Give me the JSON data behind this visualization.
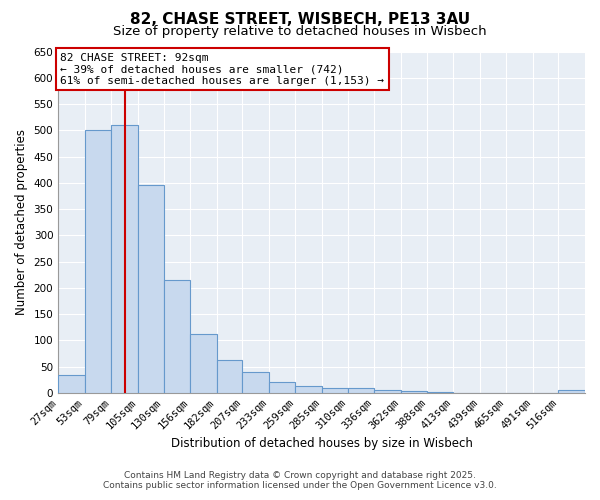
{
  "title": "82, CHASE STREET, WISBECH, PE13 3AU",
  "subtitle": "Size of property relative to detached houses in Wisbech",
  "xlabel": "Distribution of detached houses by size in Wisbech",
  "ylabel": "Number of detached properties",
  "bar_edges": [
    27,
    53,
    79,
    105,
    130,
    156,
    182,
    207,
    233,
    259,
    285,
    310,
    336,
    362,
    388,
    413,
    439,
    465,
    491,
    516,
    542
  ],
  "bar_heights": [
    35,
    500,
    510,
    395,
    215,
    112,
    62,
    40,
    20,
    14,
    10,
    10,
    5,
    3,
    1,
    0,
    0,
    0,
    0,
    5
  ],
  "bar_color": "#c8d9ee",
  "bar_edge_color": "#6699cc",
  "property_value": 92,
  "vertical_line_color": "#cc0000",
  "annotation_text": "82 CHASE STREET: 92sqm\n← 39% of detached houses are smaller (742)\n61% of semi-detached houses are larger (1,153) →",
  "annotation_box_color": "#ffffff",
  "annotation_box_edge_color": "#cc0000",
  "ylim": [
    0,
    650
  ],
  "yticks": [
    0,
    50,
    100,
    150,
    200,
    250,
    300,
    350,
    400,
    450,
    500,
    550,
    600,
    650
  ],
  "plot_bg_color": "#e8eef5",
  "background_color": "#ffffff",
  "grid_color": "#ffffff",
  "footnote1": "Contains HM Land Registry data © Crown copyright and database right 2025.",
  "footnote2": "Contains public sector information licensed under the Open Government Licence v3.0.",
  "title_fontsize": 11,
  "subtitle_fontsize": 9.5,
  "axis_label_fontsize": 8.5,
  "tick_fontsize": 7.5,
  "annotation_fontsize": 8,
  "footnote_fontsize": 6.5
}
